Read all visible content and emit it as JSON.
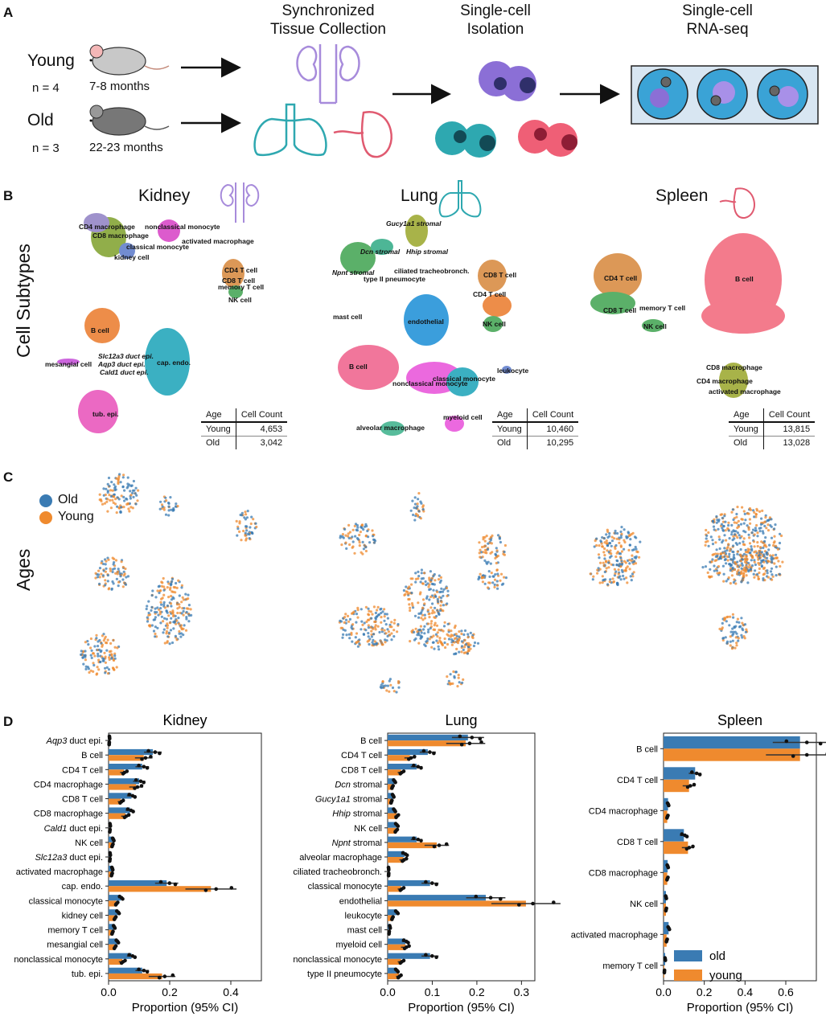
{
  "panelA": {
    "letter": "A",
    "young_label": "Young",
    "young_n": "n = 4",
    "young_age": "7-8 months",
    "old_label": "Old",
    "old_n": "n = 3",
    "old_age": "22-23 months",
    "step1": "Synchronized\nTissue Collection",
    "step2": "Single-cell\nIsolation",
    "step3": "Single-cell\nRNA-seq"
  },
  "panelB": {
    "letter": "B",
    "row_label": "Cell Subtypes",
    "kidney": {
      "title": "Kidney",
      "labels": [
        "CD4 macrophage",
        "CD8 macrophage",
        "nonclassical monocyte",
        "activated macrophage",
        "classical monocyte",
        "kidney cell",
        "CD4 T cell",
        "CD8 T cell",
        "memory T cell",
        "NK cell",
        "B cell",
        "Slc12a3 duct epi.",
        "Aqp3 duct epi.",
        "Cald1 duct epi.",
        "mesangial cell",
        "cap. endo.",
        "tub. epi."
      ],
      "table": {
        "h1": "Age",
        "h2": "Cell Count",
        "r1a": "Young",
        "r1b": "4,653",
        "r2a": "Old",
        "r2b": "3,042"
      }
    },
    "lung": {
      "title": "Lung",
      "labels": [
        "Gucy1a1 stromal",
        "Dcn stromal",
        "Hhip stromal",
        "Npnt stromal",
        "type II pneumocyte",
        "ciliated tracheobronch.",
        "CD8 T cell",
        "CD4 T cell",
        "NK cell",
        "mast cell",
        "endothelial",
        "B cell",
        "leukocyte",
        "classical monocyte",
        "nonclassical monocyte",
        "myeloid cell",
        "alveolar macrophage"
      ],
      "table": {
        "h1": "Age",
        "h2": "Cell Count",
        "r1a": "Young",
        "r1b": "10,460",
        "r2a": "Old",
        "r2b": "10,295"
      }
    },
    "spleen": {
      "title": "Spleen",
      "labels": [
        "CD4 T cell",
        "CD8 T cell",
        "memory T cell",
        "NK cell",
        "B cell",
        "CD8 macrophage",
        "CD4 macrophage",
        "activated macrophage"
      ],
      "table": {
        "h1": "Age",
        "h2": "Cell Count",
        "r1a": "Young",
        "r1b": "13,815",
        "r2a": "Old",
        "r2b": "13,028"
      }
    }
  },
  "panelC": {
    "letter": "C",
    "row_label": "Ages",
    "legend_old": "Old",
    "legend_young": "Young",
    "color_old": "#3a7bb3",
    "color_young": "#ef8a2e"
  },
  "panelD": {
    "letter": "D",
    "legend_old": "old",
    "legend_young": "young"
  },
  "chart_data": [
    {
      "type": "bar",
      "title": "Kidney",
      "xlabel": "Proportion (95% CI)",
      "xlim": [
        0,
        0.5
      ],
      "xticks": [
        "0.0",
        "0.2",
        "0.4"
      ],
      "orientation": "horizontal",
      "categories": [
        "Aqp3 duct epi.",
        "B cell",
        "CD4 T cell",
        "CD4 macrophage",
        "CD8 T cell",
        "CD8 macrophage",
        "Cald1 duct epi.",
        "NK cell",
        "Slc12a3 duct epi.",
        "activated macrophage",
        "cap. endo.",
        "classical monocyte",
        "kidney cell",
        "memory T cell",
        "mesangial cell",
        "nonclassical monocyte",
        "tub. epi."
      ],
      "series": [
        {
          "name": "old",
          "values": [
            0.003,
            0.145,
            0.11,
            0.1,
            0.075,
            0.07,
            0.005,
            0.015,
            0.005,
            0.012,
            0.19,
            0.04,
            0.03,
            0.018,
            0.028,
            0.075,
            0.11
          ]
        },
        {
          "name": "young",
          "values": [
            0.002,
            0.115,
            0.05,
            0.09,
            0.04,
            0.055,
            0.004,
            0.012,
            0.004,
            0.01,
            0.335,
            0.025,
            0.02,
            0.012,
            0.02,
            0.045,
            0.175
          ]
        }
      ]
    },
    {
      "type": "bar",
      "title": "Lung",
      "xlabel": "Proportion (95% CI)",
      "xlim": [
        0,
        0.33
      ],
      "xticks": [
        "0.0",
        "0.1",
        "0.2",
        "0.3"
      ],
      "orientation": "horizontal",
      "categories": [
        "B cell",
        "CD4 T cell",
        "CD8 T cell",
        "Dcn stromal",
        "Gucy1a1 stromal",
        "Hhip stromal",
        "NK cell",
        "Npnt stromal",
        "alveolar macrophage",
        "ciliated tracheobronch.",
        "classical monocyte",
        "endothelial",
        "leukocyte",
        "mast cell",
        "myeloid cell",
        "nonclassical monocyte",
        "type II pneumocyte"
      ],
      "series": [
        {
          "name": "old",
          "values": [
            0.18,
            0.09,
            0.065,
            0.015,
            0.012,
            0.015,
            0.02,
            0.065,
            0.038,
            0.002,
            0.095,
            0.22,
            0.02,
            0.005,
            0.04,
            0.095,
            0.02
          ]
        },
        {
          "name": "young",
          "values": [
            0.175,
            0.05,
            0.03,
            0.01,
            0.008,
            0.02,
            0.018,
            0.11,
            0.035,
            0.002,
            0.03,
            0.31,
            0.01,
            0.003,
            0.04,
            0.03,
            0.025
          ]
        }
      ]
    },
    {
      "type": "bar",
      "title": "Spleen",
      "xlabel": "Proportion (95% CI)",
      "xlim": [
        0,
        0.75
      ],
      "xticks": [
        "0.0",
        "0.2",
        "0.4",
        "0.6"
      ],
      "orientation": "horizontal",
      "categories": [
        "B cell",
        "CD4 T cell",
        "CD4 macrophage",
        "CD8 T cell",
        "CD8 macrophage",
        "NK cell",
        "activated macrophage",
        "memory T cell"
      ],
      "series": [
        {
          "name": "old",
          "values": [
            0.67,
            0.155,
            0.022,
            0.1,
            0.02,
            0.012,
            0.025,
            0.008
          ]
        },
        {
          "name": "young",
          "values": [
            0.67,
            0.125,
            0.018,
            0.12,
            0.018,
            0.012,
            0.015,
            0.004
          ]
        }
      ]
    }
  ]
}
